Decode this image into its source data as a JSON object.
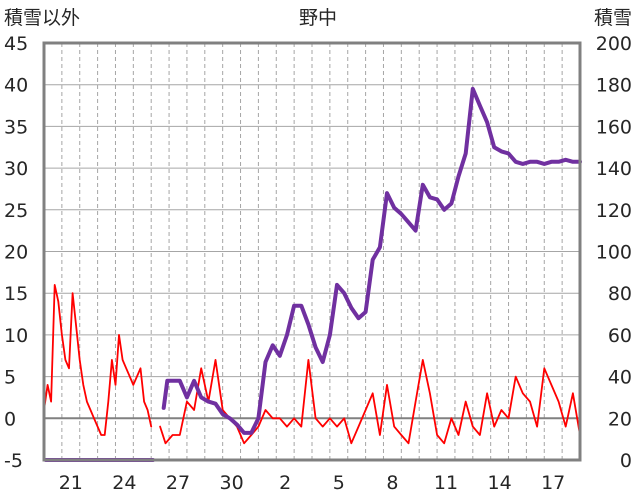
{
  "chart_data": {
    "type": "line",
    "title": "野中",
    "ylabel_left": "積雪以外",
    "ylabel_right": "積雪",
    "ylim_left": [
      -5,
      45
    ],
    "ylim_right": [
      0,
      200
    ],
    "left_ticks": [
      "45",
      "40",
      "35",
      "30",
      "25",
      "20",
      "15",
      "10",
      "5",
      "0",
      "-5"
    ],
    "right_ticks": [
      "200",
      "180",
      "160",
      "140",
      "120",
      "100",
      "80",
      "60",
      "40",
      "20",
      "0"
    ],
    "x_range_days": [
      0,
      30
    ],
    "x_tick_positions": [
      1.5,
      4.5,
      7.5,
      10.5,
      13.5,
      16.5,
      19.5,
      22.5,
      25.5,
      28.5
    ],
    "x_tick_labels": [
      "21",
      "24",
      "27",
      "30",
      "2",
      "5",
      "8",
      "11",
      "14",
      "17"
    ],
    "grid": true,
    "reference_line_left": 0,
    "series": [
      {
        "axis": "left",
        "color": "#ff0000",
        "x": [
          0,
          0.2,
          0.4,
          0.6,
          0.8,
          1.0,
          1.2,
          1.4,
          1.6,
          1.8,
          2.0,
          2.2,
          2.4,
          2.6,
          2.8,
          3.0,
          3.2,
          3.4,
          3.6,
          3.8,
          4.0,
          4.2,
          4.4,
          4.6,
          4.8,
          5.0,
          5.2,
          5.4,
          5.6,
          5.8,
          6.0
        ],
        "y": [
          1,
          4,
          2,
          16,
          14,
          10,
          7,
          6,
          15,
          11,
          7,
          4,
          2,
          1,
          0,
          -1,
          -2,
          -2,
          2,
          7,
          4,
          10,
          7,
          6,
          5,
          4,
          5,
          6,
          2,
          1,
          -1
        ]
      },
      {
        "axis": "left",
        "color": "#ff0000",
        "x": [
          6.5,
          6.8,
          7.2,
          7.6,
          8.0,
          8.4,
          8.8,
          9.2,
          9.6,
          10.0,
          10.4,
          10.8,
          11.2,
          11.6,
          12.0,
          12.4,
          12.8,
          13.2,
          13.6,
          14.0,
          14.4,
          14.8,
          15.2,
          15.6,
          16.0,
          16.4,
          16.8,
          17.2,
          17.6,
          18.0,
          18.4,
          18.8,
          19.2,
          19.6,
          20.0,
          20.4,
          20.8,
          21.2,
          21.6,
          22.0,
          22.4,
          22.8,
          23.2,
          23.6,
          24.0,
          24.4,
          24.8,
          25.2,
          25.6,
          26.0,
          26.4,
          26.8,
          27.2,
          27.6,
          28.0,
          28.4,
          28.8,
          29.2,
          29.6,
          30.0
        ],
        "y": [
          -1,
          -3,
          -2,
          -2,
          2,
          1,
          6,
          2,
          7,
          1,
          0,
          -1,
          -3,
          -2,
          -1,
          1,
          0,
          0,
          -1,
          0,
          -1,
          7,
          0,
          -1,
          0,
          -1,
          0,
          -3,
          -1,
          1,
          3,
          -2,
          4,
          -1,
          -2,
          -3,
          2,
          7,
          3,
          -2,
          -3,
          0,
          -2,
          2,
          -1,
          -2,
          3,
          -1,
          1,
          0,
          5,
          3,
          2,
          -1,
          6,
          4,
          2,
          -1,
          3,
          -2
        ]
      },
      {
        "axis": "right",
        "color": "#7030a0",
        "x": [
          6.7,
          6.9,
          7.2,
          7.6,
          8.0,
          8.4,
          8.8,
          9.2,
          9.6,
          10.0,
          10.4,
          10.8,
          11.2,
          11.6,
          12.0,
          12.4,
          12.8,
          13.2,
          13.6,
          14.0,
          14.4,
          14.8,
          15.2,
          15.6,
          16.0,
          16.4,
          16.8,
          17.2,
          17.6,
          18.0,
          18.4,
          18.8,
          19.2,
          19.6,
          20.0,
          20.4,
          20.8,
          21.2,
          21.6,
          22.0,
          22.4,
          22.8,
          23.2,
          23.6,
          24.0,
          24.4,
          24.8,
          25.2,
          25.6,
          26.0,
          26.4,
          26.8,
          27.2,
          27.6,
          28.0,
          28.4,
          28.8,
          29.2,
          29.6,
          30.0
        ],
        "y": [
          25,
          38,
          38,
          38,
          30,
          38,
          30,
          28,
          27,
          22,
          20,
          17,
          13,
          13,
          20,
          47,
          55,
          50,
          60,
          74,
          74,
          65,
          54,
          47,
          60,
          84,
          80,
          73,
          68,
          71,
          96,
          102,
          128,
          121,
          118,
          114,
          110,
          132,
          126,
          125,
          120,
          123,
          136,
          147,
          178,
          170,
          162,
          150,
          148,
          147,
          143,
          142,
          143,
          143,
          142,
          143,
          143,
          144,
          143,
          143
        ]
      },
      {
        "axis": "right",
        "color": "#7030a0",
        "x": [
          0.1,
          6.1
        ],
        "y": [
          0,
          0
        ]
      }
    ]
  }
}
